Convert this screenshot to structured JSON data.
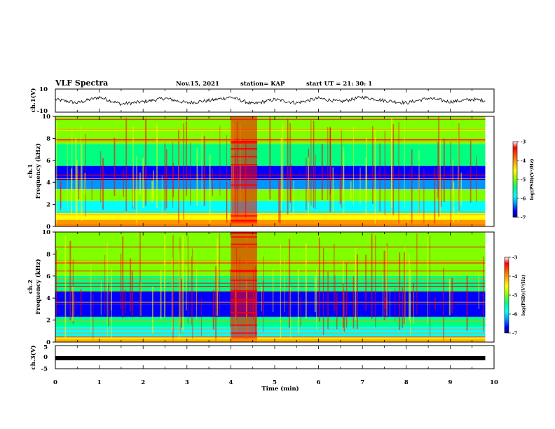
{
  "header": {
    "title": "VLF Spectra",
    "date": "Nov.15, 2021",
    "station": "station= KAP",
    "start": "start UT =  21: 30: 1"
  },
  "colors": {
    "spectrogram_scale": [
      "#00008b",
      "#0000ff",
      "#0096ff",
      "#00ffff",
      "#00ff80",
      "#80ff00",
      "#ffff00",
      "#ff9600",
      "#ff0000"
    ],
    "waveform": "#000000"
  },
  "chart_data": [
    {
      "panel": "ch1_waveform",
      "type": "line",
      "ylabel": "ch.1(V)",
      "ylim": [
        -10,
        10
      ],
      "y_ticklabels": [
        "10",
        "-10"
      ],
      "xlim": [
        0,
        10
      ],
      "x": [
        0,
        0.5,
        1,
        1.5,
        2,
        2.5,
        3,
        3.5,
        4,
        4.5,
        5,
        5.5,
        6,
        6.5,
        7,
        7.5,
        8,
        8.5,
        9,
        9.5,
        9.8
      ],
      "y": [
        1,
        -2,
        3,
        -3,
        -1,
        2,
        -2,
        0,
        3,
        -3,
        1,
        -2,
        2,
        -1,
        3,
        0,
        -2,
        2,
        -1,
        1,
        0
      ]
    },
    {
      "panel": "ch1_spectrogram",
      "type": "heatmap",
      "ylabel": "ch.1\nFrequency (kHz)",
      "ylim": [
        0,
        10
      ],
      "y_ticklabels": [
        "0",
        "2",
        "4",
        "6",
        "8",
        "10"
      ],
      "xlim": [
        0,
        10
      ],
      "data_xrange": [
        0,
        9.8
      ],
      "colorbar": {
        "label": "log(PSD)(V²/Hz)",
        "range": [
          -7,
          -3
        ],
        "ticklabels": [
          "-3",
          "-4",
          "-5",
          "-6",
          "-7"
        ]
      },
      "band_levels": [
        {
          "f": [
            0,
            0.6
          ],
          "level": -3.6
        },
        {
          "f": [
            0.6,
            1.2
          ],
          "level": -4.3
        },
        {
          "f": [
            1.2,
            2.3
          ],
          "level": -5.3
        },
        {
          "f": [
            2.3,
            3.3
          ],
          "level": -4.6
        },
        {
          "f": [
            3.3,
            4.2
          ],
          "level": -5.8
        },
        {
          "f": [
            4.2,
            5.5
          ],
          "level": -6.3
        },
        {
          "f": [
            5.5,
            7.5
          ],
          "level": -4.9
        },
        {
          "f": [
            7.5,
            10
          ],
          "level": -4.4
        }
      ],
      "event": {
        "t": [
          4.0,
          4.6
        ],
        "level": -3.4
      }
    },
    {
      "panel": "ch2_spectrogram",
      "type": "heatmap",
      "ylabel": "ch.2\nFrequency (kHz)",
      "ylim": [
        0,
        10
      ],
      "y_ticklabels": [
        "0",
        "2",
        "4",
        "6",
        "8",
        "10"
      ],
      "xlim": [
        0,
        10
      ],
      "data_xrange": [
        0,
        9.8
      ],
      "colorbar": {
        "label": "log(PSD)(V²/Hz)",
        "range": [
          -7,
          -3
        ],
        "ticklabels": [
          "-3",
          "-4",
          "-5",
          "-6",
          "-7"
        ]
      },
      "band_levels": [
        {
          "f": [
            0,
            0.5
          ],
          "level": -4.0
        },
        {
          "f": [
            0.5,
            1.4
          ],
          "level": -5.4
        },
        {
          "f": [
            1.4,
            2.3
          ],
          "level": -5.0
        },
        {
          "f": [
            2.3,
            3.4
          ],
          "level": -6.3
        },
        {
          "f": [
            3.4,
            4.6
          ],
          "level": -6.2
        },
        {
          "f": [
            4.6,
            6.0
          ],
          "level": -5.2
        },
        {
          "f": [
            6.0,
            10
          ],
          "level": -4.7
        }
      ],
      "event": {
        "t": [
          4.0,
          4.6
        ],
        "level": -3.3
      }
    },
    {
      "panel": "ch3_waveform",
      "type": "line",
      "ylabel": "ch.3(V)",
      "ylim": [
        -5,
        5
      ],
      "y_ticklabels": [
        "5",
        "0",
        "-5"
      ],
      "xlim": [
        0,
        10
      ],
      "x": [
        0,
        9.8
      ],
      "y": [
        -0.5,
        -0.5
      ],
      "xlabel": "Time (min)",
      "x_ticklabels": [
        "0",
        "1",
        "2",
        "3",
        "4",
        "5",
        "6",
        "7",
        "8",
        "9",
        "10"
      ]
    }
  ]
}
